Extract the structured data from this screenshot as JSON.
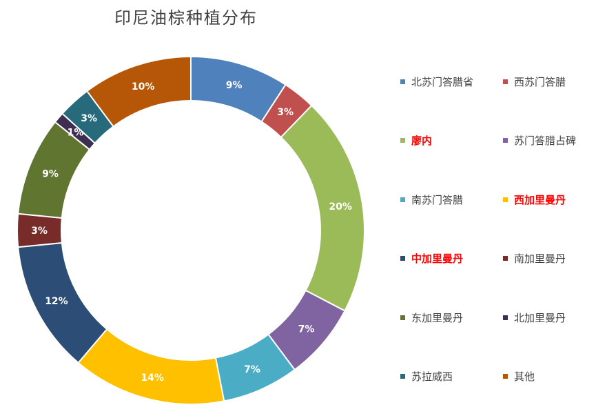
{
  "chart_data": {
    "type": "pie",
    "title": "印尼油棕种植分布",
    "categories": [
      "北苏门答腊省",
      "西苏门答腊",
      "廖内",
      "苏门答腊占碑",
      "南苏门答腊",
      "西加里曼丹",
      "中加里曼丹",
      "南加里曼丹",
      "东加里曼丹",
      "北加里曼丹",
      "苏拉威西",
      "其他"
    ],
    "values": [
      9,
      3,
      20,
      7,
      7,
      14,
      12,
      3,
      9,
      1,
      3,
      10
    ],
    "data_labels": [
      "9%",
      "3%",
      "20%",
      "7%",
      "7%",
      "14%",
      "12%",
      "3%",
      "9%",
      "1%",
      "3%",
      "10%"
    ],
    "colors": [
      "#4f81bd",
      "#c0504d",
      "#9bbb59",
      "#8064a2",
      "#4bacc6",
      "#ffc000",
      "#2c4d75",
      "#772c2a",
      "#5f7530",
      "#3e2f52",
      "#276a7c",
      "#b65708"
    ],
    "highlighted_legend": [
      "廖内",
      "西加里曼丹",
      "中加里曼丹"
    ],
    "legend_position": "right",
    "donut": true
  }
}
